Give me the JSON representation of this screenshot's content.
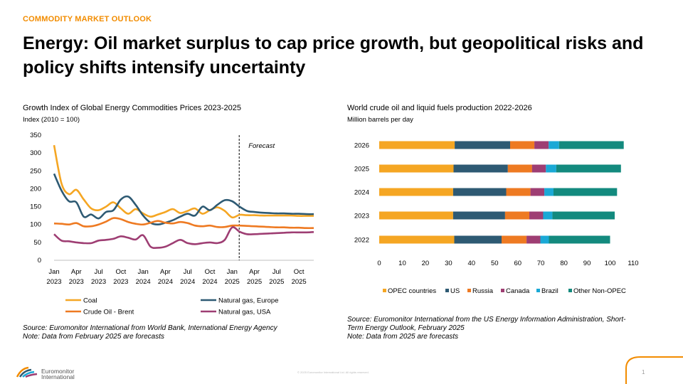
{
  "header": {
    "kicker": "COMMODITY MARKET OUTLOOK",
    "title": "Energy: Oil market surplus to cap price growth, but geopolitical risks and policy shifts intensify uncertainty"
  },
  "colors": {
    "accent": "#f28c00",
    "coal": "#f5a623",
    "gas_europe": "#2e5a73",
    "brent": "#ee7a22",
    "gas_usa": "#9e3e73",
    "opec": "#f5a623",
    "us": "#2e5a73",
    "russia": "#ee7a22",
    "canada": "#9e3e73",
    "brazil": "#1aa9d6",
    "other_non_opec": "#138a7e"
  },
  "left_chart": {
    "title": "Growth Index of Global Energy Commodities Prices 2023-2025",
    "subtitle": "Index (2010 = 100)",
    "forecast_label": "Forecast",
    "source": "Source: Euromonitor International from World Bank, International Energy Agency",
    "note": "Note: Data from February 2025 are forecasts"
  },
  "right_chart": {
    "title": "World crude oil and liquid fuels production 2022-2026",
    "subtitle": "Million barrels per day",
    "source_line1": "Source: Euromonitor International from the US Energy Information Administration, Short-",
    "source_line2": "Term Energy Outlook, February 2025",
    "note": "Note: Data from 2025 are forecasts"
  },
  "chart_data": [
    {
      "type": "line",
      "title": "Growth Index of Global Energy Commodities Prices 2023-2025",
      "ylabel": "Index (2010 = 100)",
      "ylim": [
        0,
        350
      ],
      "yticks": [
        0,
        50,
        100,
        150,
        200,
        250,
        300,
        350
      ],
      "xticks": [
        {
          "m": "Jan",
          "y": "2023",
          "i": 0
        },
        {
          "m": "Apr",
          "y": "2023",
          "i": 3
        },
        {
          "m": "Jul",
          "y": "2023",
          "i": 6
        },
        {
          "m": "Oct",
          "y": "2023",
          "i": 9
        },
        {
          "m": "Jan",
          "y": "2024",
          "i": 12
        },
        {
          "m": "Apr",
          "y": "2024",
          "i": 15
        },
        {
          "m": "Jul",
          "y": "2024",
          "i": 18
        },
        {
          "m": "Oct",
          "y": "2024",
          "i": 21
        },
        {
          "m": "Jan",
          "y": "2025",
          "i": 24
        },
        {
          "m": "Apr",
          "y": "2025",
          "i": 27
        },
        {
          "m": "Jul",
          "y": "2025",
          "i": 30
        },
        {
          "m": "Oct",
          "y": "2025",
          "i": 33
        }
      ],
      "forecast_start_index": 25,
      "legend_position": "bottom",
      "series": [
        {
          "name": "Coal",
          "color_key": "coal",
          "values": [
            322,
            215,
            185,
            197,
            170,
            145,
            140,
            150,
            162,
            145,
            130,
            143,
            131,
            122,
            128,
            135,
            143,
            132,
            138,
            145,
            130,
            140,
            148,
            138,
            120,
            127,
            126,
            126,
            125,
            125,
            125,
            125,
            125,
            124,
            124,
            124
          ]
        },
        {
          "name": "Natural gas, Europe",
          "color_key": "gas_europe",
          "values": [
            242,
            195,
            165,
            162,
            122,
            128,
            117,
            135,
            140,
            170,
            178,
            155,
            125,
            105,
            100,
            105,
            112,
            122,
            130,
            125,
            150,
            140,
            155,
            168,
            165,
            150,
            138,
            135,
            133,
            132,
            131,
            131,
            130,
            130,
            129,
            129
          ]
        },
        {
          "name": "Crude Oil - Brent",
          "color_key": "brent",
          "values": [
            103,
            102,
            100,
            104,
            95,
            95,
            100,
            108,
            118,
            115,
            107,
            102,
            100,
            105,
            110,
            105,
            103,
            107,
            104,
            97,
            95,
            97,
            93,
            93,
            97,
            97,
            96,
            95,
            94,
            93,
            92,
            92,
            91,
            91,
            90,
            90
          ]
        },
        {
          "name": "Natural gas, USA",
          "color_key": "gas_usa",
          "values": [
            73,
            55,
            53,
            50,
            48,
            48,
            55,
            57,
            60,
            67,
            63,
            58,
            70,
            38,
            35,
            38,
            48,
            57,
            48,
            45,
            48,
            50,
            48,
            57,
            92,
            80,
            73,
            73,
            74,
            75,
            76,
            77,
            78,
            78,
            78,
            79
          ]
        }
      ]
    },
    {
      "type": "bar",
      "orientation": "horizontal",
      "stacked": true,
      "title": "World crude oil and liquid fuels production 2022-2026",
      "xlabel": "Million barrels per day",
      "xlim": [
        0,
        110
      ],
      "xticks": [
        0,
        10,
        20,
        30,
        40,
        50,
        60,
        70,
        80,
        90,
        100,
        110
      ],
      "categories": [
        "2026",
        "2025",
        "2024",
        "2023",
        "2022"
      ],
      "legend_position": "bottom",
      "series": [
        {
          "name": "OPEC countries",
          "color_key": "opec",
          "values": [
            32.7,
            32.2,
            32.0,
            32.0,
            32.5
          ]
        },
        {
          "name": "US",
          "color_key": "us",
          "values": [
            24.0,
            23.5,
            23.0,
            22.5,
            20.5
          ]
        },
        {
          "name": "Russia",
          "color_key": "russia",
          "values": [
            10.5,
            10.5,
            10.5,
            10.5,
            10.8
          ]
        },
        {
          "name": "Canada",
          "color_key": "canada",
          "values": [
            6.2,
            6.0,
            6.0,
            6.0,
            6.0
          ]
        },
        {
          "name": "Brazil",
          "color_key": "brazil",
          "values": [
            4.5,
            4.5,
            4.0,
            4.0,
            3.7
          ]
        },
        {
          "name": "Other Non-OPEC",
          "color_key": "other_non_opec",
          "values": [
            28.0,
            28.0,
            27.5,
            27.0,
            26.5
          ]
        }
      ]
    }
  ],
  "footer": {
    "logo_line1": "Euromonitor",
    "logo_line2": "International",
    "copyright": "© 2025 Euromonitor International Ltd. All rights reserved.",
    "page_number": "1"
  }
}
